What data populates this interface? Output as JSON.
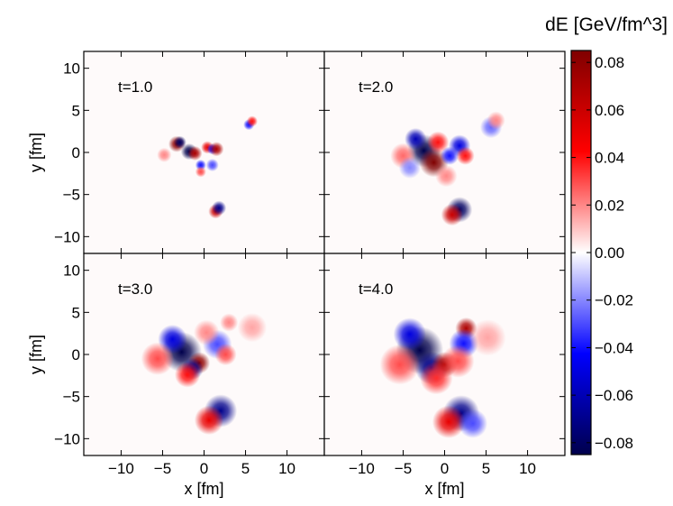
{
  "chart_data": {
    "type": "heatmap",
    "colorbar": {
      "label": "dE [GeV/fm^3]",
      "range": [
        -0.085,
        0.085
      ],
      "ticks": [
        0.08,
        0.06,
        0.04,
        0.02,
        0.0,
        -0.02,
        -0.04,
        -0.06,
        -0.08
      ],
      "tick_labels": [
        "0.08",
        "0.06",
        "0.04",
        "0.02",
        "0.00",
        "−0.02",
        "−0.04",
        "−0.06",
        "−0.08"
      ],
      "colormap": "seismic",
      "colors": {
        "negative": "#00004c",
        "mid": "#ffffff",
        "positive": "#800000"
      }
    },
    "axes": {
      "xlabel": "x [fm]",
      "ylabel": "y [fm]",
      "xlim": [
        -14.5,
        14.5
      ],
      "ylim": [
        -12,
        12
      ],
      "xticks": [
        -10,
        -5,
        0,
        5,
        10
      ],
      "xtick_labels": [
        "−10",
        "−5",
        "0",
        "5",
        "10"
      ],
      "yticks": [
        10,
        5,
        0,
        -5,
        -10
      ],
      "ytick_labels": [
        "10",
        "5",
        "0",
        "−5",
        "−10"
      ]
    },
    "panels": [
      {
        "label": "t=1.0",
        "blobs": [
          {
            "x": -3.3,
            "y": 1.0,
            "v": 0.08,
            "s": 0.45
          },
          {
            "x": -2.9,
            "y": 1.2,
            "v": -0.08,
            "s": 0.35
          },
          {
            "x": -1.8,
            "y": 0.1,
            "v": -0.09,
            "s": 0.45
          },
          {
            "x": -1.1,
            "y": -0.1,
            "v": 0.07,
            "s": 0.4
          },
          {
            "x": 0.4,
            "y": 0.6,
            "v": 0.05,
            "s": 0.35
          },
          {
            "x": 1.0,
            "y": 0.4,
            "v": -0.04,
            "s": 0.3
          },
          {
            "x": 1.5,
            "y": 0.4,
            "v": 0.07,
            "s": 0.4
          },
          {
            "x": -0.4,
            "y": -1.5,
            "v": -0.04,
            "s": 0.3
          },
          {
            "x": 1.0,
            "y": -1.5,
            "v": -0.03,
            "s": 0.35
          },
          {
            "x": -4.8,
            "y": -0.3,
            "v": 0.02,
            "s": 0.4
          },
          {
            "x": 5.4,
            "y": 3.3,
            "v": -0.04,
            "s": 0.3
          },
          {
            "x": 5.8,
            "y": 3.7,
            "v": 0.04,
            "s": 0.3
          },
          {
            "x": 1.4,
            "y": -7.0,
            "v": 0.06,
            "s": 0.4
          },
          {
            "x": 1.8,
            "y": -6.6,
            "v": -0.07,
            "s": 0.4
          },
          {
            "x": -0.4,
            "y": -2.3,
            "v": 0.03,
            "s": 0.3
          }
        ]
      },
      {
        "label": "t=2.0",
        "blobs": [
          {
            "x": -2.5,
            "y": 0.2,
            "v": -0.09,
            "s": 0.9
          },
          {
            "x": -1.3,
            "y": -1.2,
            "v": 0.09,
            "s": 0.8
          },
          {
            "x": -3.5,
            "y": 1.6,
            "v": -0.06,
            "s": 0.6
          },
          {
            "x": -0.8,
            "y": 1.2,
            "v": 0.04,
            "s": 0.6
          },
          {
            "x": 1.8,
            "y": 0.8,
            "v": -0.05,
            "s": 0.6
          },
          {
            "x": 2.5,
            "y": -0.4,
            "v": 0.04,
            "s": 0.5
          },
          {
            "x": 0.6,
            "y": -0.4,
            "v": -0.04,
            "s": 0.5
          },
          {
            "x": -5.0,
            "y": -0.4,
            "v": 0.025,
            "s": 0.7
          },
          {
            "x": -4.2,
            "y": -1.8,
            "v": -0.02,
            "s": 0.6
          },
          {
            "x": 1.8,
            "y": -6.8,
            "v": -0.08,
            "s": 0.7
          },
          {
            "x": 0.9,
            "y": -7.4,
            "v": 0.06,
            "s": 0.6
          },
          {
            "x": 5.6,
            "y": 3.0,
            "v": -0.025,
            "s": 0.6
          },
          {
            "x": 6.2,
            "y": 3.8,
            "v": 0.02,
            "s": 0.5
          },
          {
            "x": 0.2,
            "y": -2.8,
            "v": 0.02,
            "s": 0.6
          }
        ]
      },
      {
        "label": "t=3.0",
        "blobs": [
          {
            "x": -2.7,
            "y": 0.3,
            "v": -0.09,
            "s": 1.1
          },
          {
            "x": -0.6,
            "y": -1.0,
            "v": 0.08,
            "s": 0.6
          },
          {
            "x": -1.4,
            "y": -1.7,
            "v": -0.07,
            "s": 0.6
          },
          {
            "x": -3.8,
            "y": 1.8,
            "v": -0.05,
            "s": 0.8
          },
          {
            "x": -2.0,
            "y": -2.4,
            "v": 0.04,
            "s": 0.7
          },
          {
            "x": 1.6,
            "y": 1.2,
            "v": -0.03,
            "s": 0.8
          },
          {
            "x": 2.6,
            "y": 0.0,
            "v": 0.03,
            "s": 0.6
          },
          {
            "x": -5.6,
            "y": -0.5,
            "v": 0.03,
            "s": 0.9
          },
          {
            "x": 0.3,
            "y": 2.6,
            "v": 0.02,
            "s": 0.7
          },
          {
            "x": 2.0,
            "y": -6.7,
            "v": -0.07,
            "s": 0.9
          },
          {
            "x": 0.6,
            "y": -7.8,
            "v": 0.05,
            "s": 0.8
          },
          {
            "x": 3.0,
            "y": 3.8,
            "v": 0.02,
            "s": 0.5
          },
          {
            "x": 5.8,
            "y": 3.2,
            "v": 0.015,
            "s": 0.8
          }
        ]
      },
      {
        "label": "t=4.0",
        "blobs": [
          {
            "x": -3.0,
            "y": 0.5,
            "v": -0.095,
            "s": 1.3
          },
          {
            "x": -1.6,
            "y": -1.6,
            "v": -0.07,
            "s": 0.9
          },
          {
            "x": 0.0,
            "y": -1.2,
            "v": 0.07,
            "s": 0.7
          },
          {
            "x": -4.2,
            "y": 2.4,
            "v": -0.05,
            "s": 0.9
          },
          {
            "x": 2.6,
            "y": 3.1,
            "v": 0.07,
            "s": 0.6
          },
          {
            "x": 2.3,
            "y": 1.3,
            "v": -0.04,
            "s": 0.8
          },
          {
            "x": 1.6,
            "y": -0.8,
            "v": 0.03,
            "s": 0.9
          },
          {
            "x": -5.4,
            "y": -1.2,
            "v": 0.03,
            "s": 1.1
          },
          {
            "x": -1.0,
            "y": -2.8,
            "v": 0.035,
            "s": 0.9
          },
          {
            "x": 2.0,
            "y": -7.0,
            "v": -0.07,
            "s": 1.0
          },
          {
            "x": 0.5,
            "y": -8.0,
            "v": 0.05,
            "s": 0.9
          },
          {
            "x": 3.4,
            "y": -8.2,
            "v": -0.03,
            "s": 0.8
          },
          {
            "x": 5.2,
            "y": 2.0,
            "v": 0.015,
            "s": 1.0
          }
        ]
      }
    ]
  }
}
